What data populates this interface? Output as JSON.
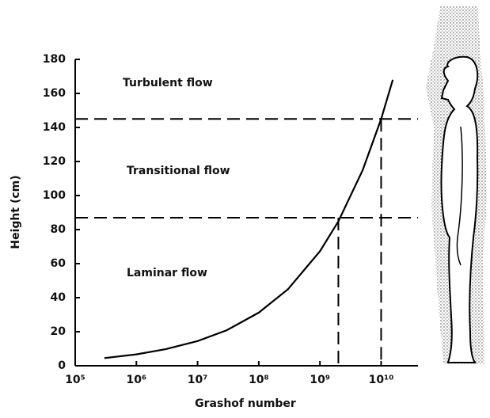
{
  "chart_data": {
    "type": "line",
    "xlabel": "Grashof number",
    "ylabel": "Height (cm)",
    "log_x": true,
    "x": [
      300000,
      1000000,
      3000000,
      10000000,
      30000000,
      100000000,
      300000000,
      1000000000,
      2000000000,
      5000000000,
      10000000000,
      15500000000
    ],
    "series": [
      {
        "color": "#000000",
        "values": [
          4.5,
          6.7,
          9.7,
          14.5,
          20.9,
          31.2,
          45,
          67.3,
          84.8,
          115,
          145,
          168
        ]
      }
    ],
    "xlim": [
      100000,
      40000000000
    ],
    "ylim": [
      0,
      180
    ],
    "xticks": [
      {
        "value": 100000,
        "label": "10⁵"
      },
      {
        "value": 1000000,
        "label": "10⁶"
      },
      {
        "value": 10000000,
        "label": "10⁷"
      },
      {
        "value": 100000000,
        "label": "10⁸"
      },
      {
        "value": 1000000000,
        "label": "10⁹"
      },
      {
        "value": 10000000000,
        "label": "10¹⁰"
      }
    ],
    "yticks": [
      0,
      20,
      40,
      60,
      80,
      100,
      120,
      140,
      160,
      180
    ],
    "reference_lines": [
      {
        "x": 2000000000,
        "y": 87
      },
      {
        "x": 10000000000,
        "y": 145
      }
    ],
    "annotations": [
      "Turbulent flow",
      "Transitional flow",
      "Laminar flow"
    ]
  }
}
